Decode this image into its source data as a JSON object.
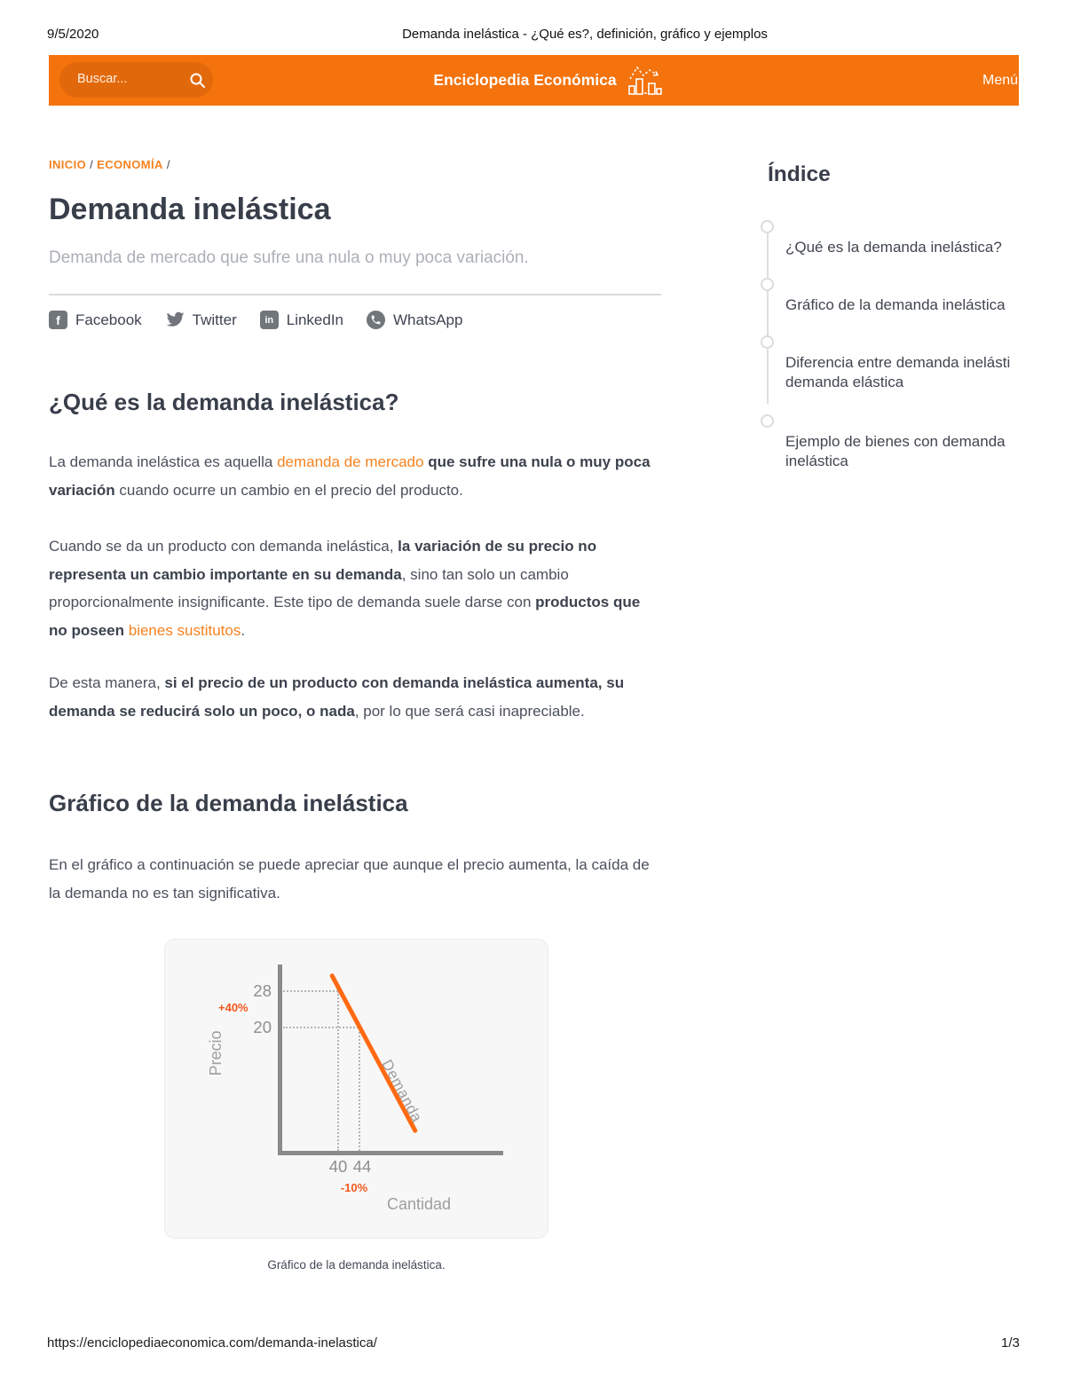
{
  "print_header": {
    "date": "9/5/2020",
    "title": "Demanda inelástica - ¿Qué es?, definición, gráfico y ejemplos"
  },
  "navbar": {
    "search_placeholder": "Buscar...",
    "brand": "Enciclopedia Económica",
    "menu": "Menú"
  },
  "breadcrumb": {
    "home": "INICIO",
    "section": "ECONOMÍA",
    "separator": "/"
  },
  "article": {
    "title": "Demanda inelástica",
    "subtitle": "Demanda de mercado que sufre una nula o muy poca variación.",
    "share": {
      "facebook": "Facebook",
      "twitter": "Twitter",
      "linkedin": "LinkedIn",
      "whatsapp": "WhatsApp"
    },
    "section1": {
      "heading": "¿Qué es la demanda inelástica?",
      "p1": [
        {
          "t": "La demanda inelástica es aquella ",
          "s": "n"
        },
        {
          "t": "demanda de mercado",
          "s": "a"
        },
        {
          "t": " ",
          "s": "n"
        },
        {
          "t": "que sufre una nula o muy poca variación",
          "s": "b"
        },
        {
          "t": " cuando ocurre un cambio en el precio del producto.",
          "s": "n"
        }
      ],
      "p2": [
        {
          "t": "Cuando se da un producto con demanda inelástica, ",
          "s": "n"
        },
        {
          "t": "la variación de su precio no representa un cambio importante en su demanda",
          "s": "b"
        },
        {
          "t": ", sino tan solo un cambio proporcionalmente insignificante. Este tipo de demanda suele darse con ",
          "s": "n"
        },
        {
          "t": "productos que no poseen ",
          "s": "b"
        },
        {
          "t": "bienes sustitutos",
          "s": "a"
        },
        {
          "t": ".",
          "s": "n"
        }
      ],
      "p3": [
        {
          "t": "De esta manera, ",
          "s": "n"
        },
        {
          "t": "si el precio de un producto con demanda inelástica aumenta, su demanda se reducirá solo un poco, o nada",
          "s": "b"
        },
        {
          "t": ", por lo que será casi inapreciable.",
          "s": "n"
        }
      ]
    },
    "section2": {
      "heading": "Gráfico de la demanda inelástica",
      "p1": [
        {
          "t": "En el gráfico a continuación se puede apreciar que aunque el precio aumenta, la caída de la demanda no es tan significativa.",
          "s": "n"
        }
      ],
      "caption": "Gráfico de la demanda inelástica."
    }
  },
  "index": {
    "title": "Índice",
    "items": [
      "¿Qué es la demanda inelástica?",
      "Gráfico de la demanda inelástica",
      "Diferencia entre demanda inelásti\ndemanda elástica",
      "Ejemplo de bienes con demanda\ninelástica"
    ]
  },
  "chart_data": {
    "type": "line",
    "xlabel": "Cantidad",
    "ylabel": "Precio",
    "series": [
      {
        "name": "Demanda",
        "x": [
          40,
          44
        ],
        "y": [
          28,
          20
        ]
      }
    ],
    "x_ticks": [
      40,
      44
    ],
    "y_ticks": [
      28,
      20
    ],
    "annotations": [
      {
        "text": "+40%",
        "axis": "y"
      },
      {
        "text": "-10%",
        "axis": "x"
      }
    ],
    "grid": "dotted reference lines at (40,28) and (44,20)",
    "legend_position": "on-line",
    "line_color": "#FF6A13"
  },
  "footer": {
    "url": "https://enciclopediaeconomica.com/demanda-inelastica/",
    "page": "1/3"
  },
  "colors": {
    "brand_orange": "#F4730C",
    "search_pill_orange": "#E2690B",
    "link_orange": "#F5821F",
    "demand_line_orange": "#FF6A13",
    "annotation_orange": "#F4581C",
    "axis_gray": "#8A8A8A",
    "chart_text_gray": "#9E9E9E",
    "heading_dark": "#383E4A",
    "body_text": "#4A505C",
    "subtitle_gray": "#ACB0B7",
    "icon_gray": "#71767C"
  }
}
